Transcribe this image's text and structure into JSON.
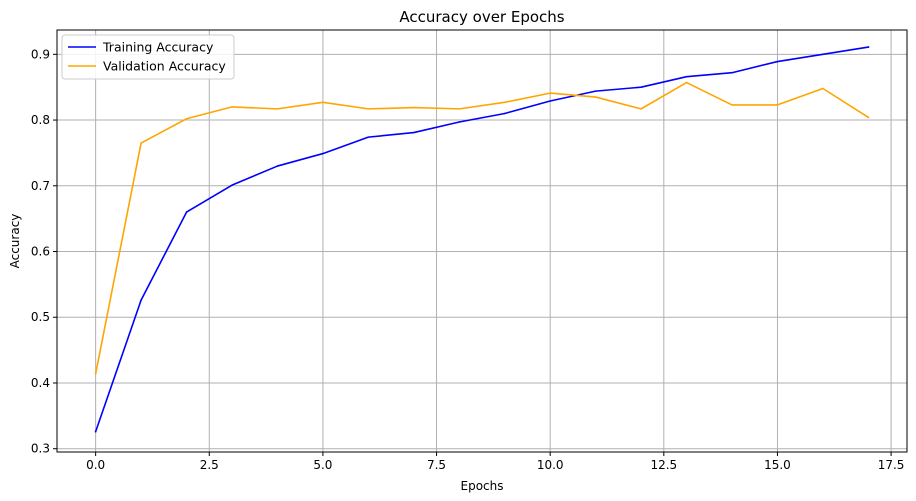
{
  "chart_data": {
    "type": "line",
    "title": "Accuracy over Epochs",
    "xlabel": "Epochs",
    "ylabel": "Accuracy",
    "xlim": [
      -0.85,
      17.85
    ],
    "ylim": [
      0.295,
      0.937
    ],
    "xticks": [
      0.0,
      2.5,
      5.0,
      7.5,
      10.0,
      12.5,
      15.0,
      17.5
    ],
    "xtick_labels": [
      "0.0",
      "2.5",
      "5.0",
      "7.5",
      "10.0",
      "12.5",
      "15.0",
      "17.5"
    ],
    "yticks": [
      0.3,
      0.4,
      0.5,
      0.6,
      0.7,
      0.8,
      0.9
    ],
    "ytick_labels": [
      "0.3",
      "0.4",
      "0.5",
      "0.6",
      "0.7",
      "0.8",
      "0.9"
    ],
    "grid": true,
    "legend_position": "top-left",
    "x": [
      0,
      1,
      2,
      3,
      4,
      5,
      6,
      7,
      8,
      9,
      10,
      11,
      12,
      13,
      14,
      15,
      16,
      17
    ],
    "series": [
      {
        "name": "Training Accuracy",
        "color": "#0000ff",
        "values": [
          0.326,
          0.526,
          0.66,
          0.701,
          0.73,
          0.749,
          0.774,
          0.781,
          0.797,
          0.81,
          0.829,
          0.844,
          0.85,
          0.866,
          0.872,
          0.889,
          0.9,
          0.911
        ]
      },
      {
        "name": "Validation Accuracy",
        "color": "#ffa500",
        "values": [
          0.414,
          0.765,
          0.802,
          0.82,
          0.817,
          0.827,
          0.817,
          0.819,
          0.817,
          0.827,
          0.841,
          0.835,
          0.817,
          0.857,
          0.823,
          0.823,
          0.848,
          0.804
        ]
      }
    ]
  }
}
